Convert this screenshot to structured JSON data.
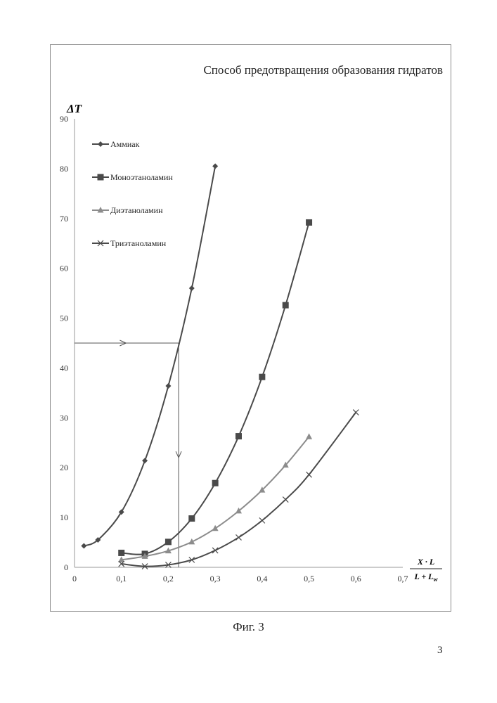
{
  "page": {
    "caption": "Фиг. 3",
    "number": "3"
  },
  "chart_data": {
    "type": "line",
    "title": "Способ предотвращения образования гидратов",
    "ylabel": "ΔT",
    "xlabel": {
      "numerator": "X · L",
      "denominator": "L + L_w"
    },
    "xlim": [
      0,
      0.7
    ],
    "ylim": [
      0,
      90
    ],
    "xticks": [
      0,
      0.1,
      0.2,
      0.3,
      0.4,
      0.5,
      0.6,
      0.7
    ],
    "xtick_labels": [
      "0",
      "0,1",
      "0,2",
      "0,3",
      "0,4",
      "0,5",
      "0,6",
      "0,7"
    ],
    "yticks": [
      0,
      10,
      20,
      30,
      40,
      50,
      60,
      70,
      80,
      90
    ],
    "ytick_labels": [
      "0",
      "10",
      "20",
      "30",
      "40",
      "50",
      "60",
      "70",
      "80",
      "90"
    ],
    "grid": false,
    "legend_position": "top-left",
    "series": [
      {
        "name": "Аммиак",
        "marker": "diamond",
        "color": "#4a4a4a",
        "x": [
          0.02,
          0.05,
          0.1,
          0.15,
          0.2,
          0.25,
          0.3
        ],
        "y": [
          4.3,
          5.5,
          11.1,
          21.4,
          36.4,
          56.0,
          80.5
        ]
      },
      {
        "name": "Моноэтаноламин",
        "marker": "square",
        "color": "#4a4a4a",
        "x": [
          0.1,
          0.15,
          0.2,
          0.25,
          0.3,
          0.35,
          0.4,
          0.45,
          0.5
        ],
        "y": [
          2.9,
          2.7,
          5.1,
          9.8,
          16.9,
          26.3,
          38.2,
          52.6,
          69.2
        ]
      },
      {
        "name": "Диэтаноламин",
        "marker": "triangle",
        "color": "#8c8c8c",
        "x": [
          0.1,
          0.15,
          0.2,
          0.25,
          0.3,
          0.35,
          0.4,
          0.45,
          0.5
        ],
        "y": [
          1.5,
          2.2,
          3.3,
          5.1,
          7.8,
          11.3,
          15.5,
          20.5,
          26.2
        ]
      },
      {
        "name": "Триэтаноламин",
        "marker": "x",
        "color": "#4a4a4a",
        "x": [
          0.1,
          0.15,
          0.2,
          0.25,
          0.3,
          0.35,
          0.4,
          0.45,
          0.5,
          0.6
        ],
        "y": [
          0.7,
          0.2,
          0.5,
          1.5,
          3.4,
          6.0,
          9.4,
          13.6,
          18.6,
          31.1
        ]
      }
    ],
    "annotation": {
      "value_y": 45,
      "value_x": 0.222
    }
  }
}
